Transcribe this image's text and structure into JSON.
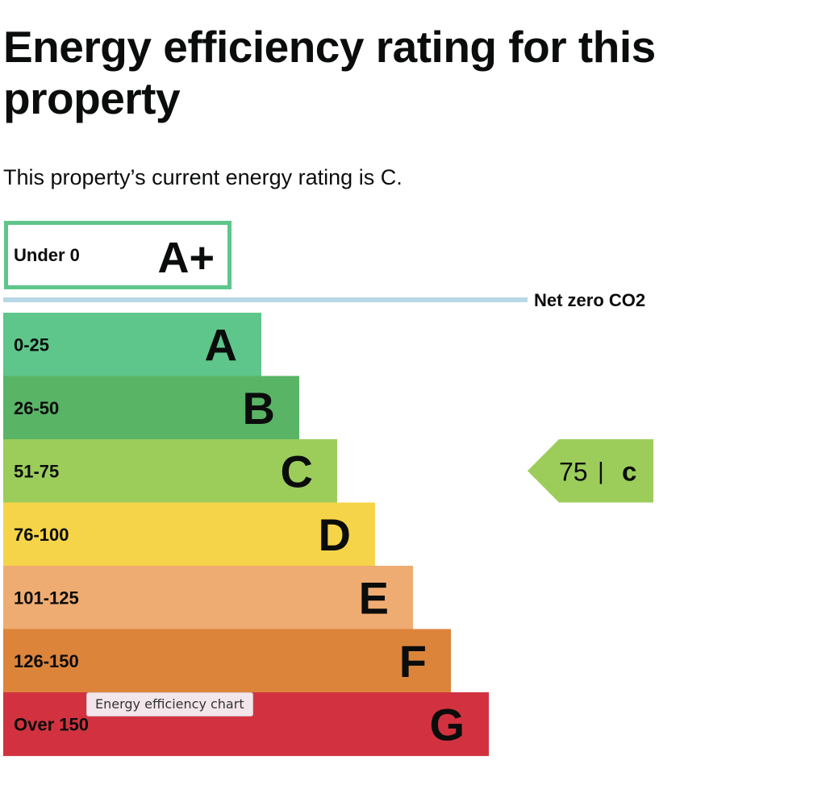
{
  "page": {
    "title": "Energy efficiency rating for this property",
    "summary": "This property’s current energy rating is C."
  },
  "chart_data": {
    "type": "bar",
    "title": "",
    "net_zero_label": "Net zero CO2",
    "bands": [
      {
        "range": "Under 0",
        "letter": "A+",
        "color": "#5ec68a",
        "outlined": true
      },
      {
        "range": "0-25",
        "letter": "A",
        "color": "#5ec68a"
      },
      {
        "range": "26-50",
        "letter": "B",
        "color": "#59b466"
      },
      {
        "range": "51-75",
        "letter": "C",
        "color": "#9ccd5b"
      },
      {
        "range": "76-100",
        "letter": "D",
        "color": "#f5d449"
      },
      {
        "range": "101-125",
        "letter": "E",
        "color": "#efac72"
      },
      {
        "range": "126-150",
        "letter": "F",
        "color": "#dd843b"
      },
      {
        "range": "Over 150",
        "letter": "G",
        "color": "#d2323f"
      }
    ],
    "current_rating": {
      "score": "75",
      "separator": "|",
      "letter": "C",
      "color": "#9ccd5b"
    },
    "net_zero_line_color": "#b7d8e6"
  },
  "tooltip": {
    "text": "Energy efficiency chart"
  }
}
